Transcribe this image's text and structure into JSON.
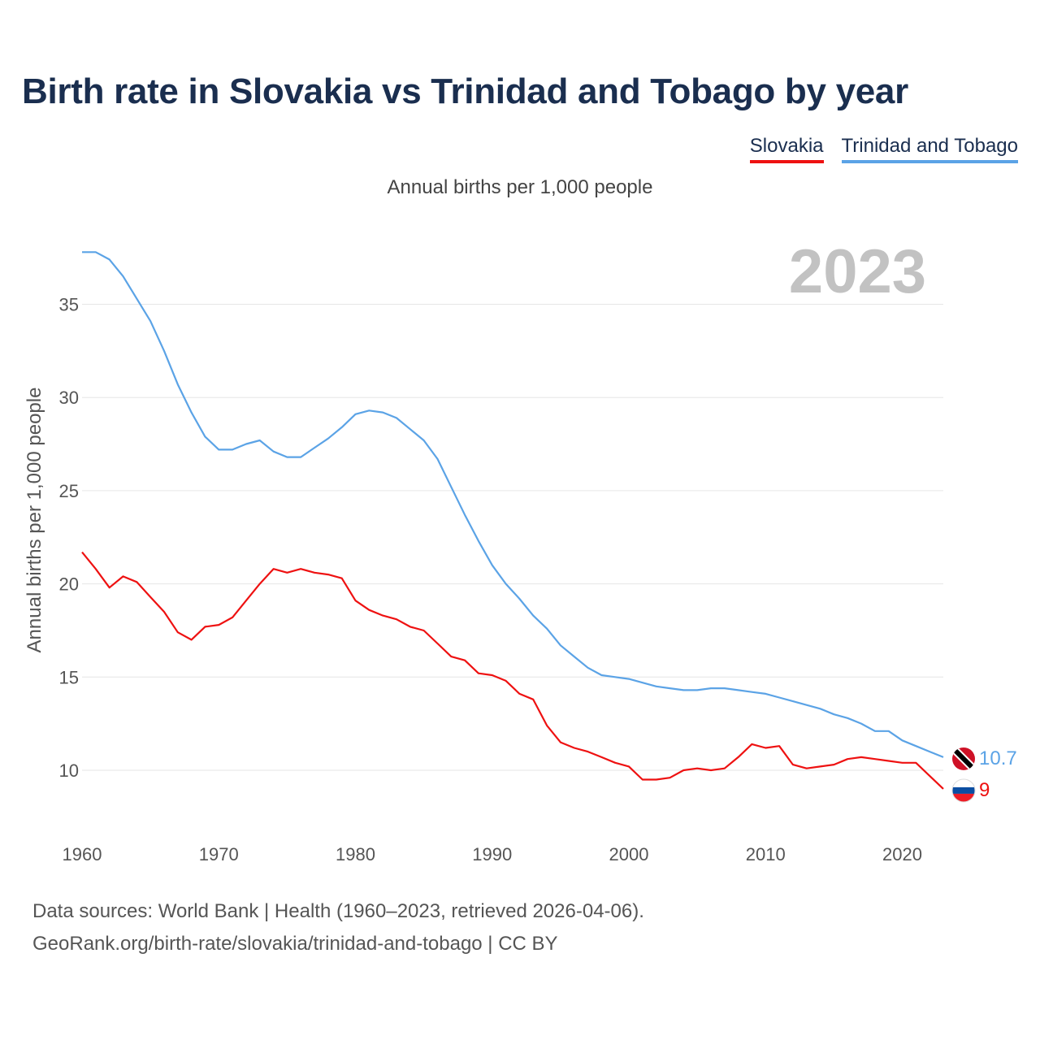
{
  "title": "Birth rate in Slovakia vs Trinidad and Tobago by year",
  "subtitle": "Annual births per 1,000 people",
  "legend": [
    {
      "label": "Slovakia",
      "color": "#ee1111"
    },
    {
      "label": "Trinidad and Tobago",
      "color": "#5ba3e6"
    }
  ],
  "year_overlay": "2023",
  "footer": {
    "line1": "Data sources: World Bank | Health (1960–2023, retrieved 2026-04-06).",
    "line2": "GeoRank.org/birth-rate/slovakia/trinidad-and-tobago | CC BY"
  },
  "chart_data": {
    "type": "line",
    "title": "Birth rate in Slovakia vs Trinidad and Tobago by year",
    "ylabel": "Annual births per 1,000 people",
    "xlabel": "",
    "xlim": [
      1960,
      2023
    ],
    "ylim": [
      7,
      38
    ],
    "yticks": [
      10,
      15,
      20,
      25,
      30,
      35
    ],
    "xticks": [
      1960,
      1970,
      1980,
      1990,
      2000,
      2010,
      2020
    ],
    "grid": true,
    "x": [
      1960,
      1961,
      1962,
      1963,
      1964,
      1965,
      1966,
      1967,
      1968,
      1969,
      1970,
      1971,
      1972,
      1973,
      1974,
      1975,
      1976,
      1977,
      1978,
      1979,
      1980,
      1981,
      1982,
      1983,
      1984,
      1985,
      1986,
      1987,
      1988,
      1989,
      1990,
      1991,
      1992,
      1993,
      1994,
      1995,
      1996,
      1997,
      1998,
      1999,
      2000,
      2001,
      2002,
      2003,
      2004,
      2005,
      2006,
      2007,
      2008,
      2009,
      2010,
      2011,
      2012,
      2013,
      2014,
      2015,
      2016,
      2017,
      2018,
      2019,
      2020,
      2021,
      2022,
      2023
    ],
    "series": [
      {
        "name": "Slovakia",
        "color": "#ee1111",
        "end_label": "9",
        "values": [
          21.7,
          20.8,
          19.8,
          20.4,
          20.1,
          19.3,
          18.5,
          17.4,
          17.0,
          17.7,
          17.8,
          18.2,
          19.1,
          20.0,
          20.8,
          20.6,
          20.8,
          20.6,
          20.5,
          20.3,
          19.1,
          18.6,
          18.3,
          18.1,
          17.7,
          17.5,
          16.8,
          16.1,
          15.9,
          15.2,
          15.1,
          14.8,
          14.1,
          13.8,
          12.4,
          11.5,
          11.2,
          11.0,
          10.7,
          10.4,
          10.2,
          9.5,
          9.5,
          9.6,
          10.0,
          10.1,
          10.0,
          10.1,
          10.7,
          11.4,
          11.2,
          11.3,
          10.3,
          10.1,
          10.2,
          10.3,
          10.6,
          10.7,
          10.6,
          10.5,
          10.4,
          10.4,
          9.7,
          9.0
        ]
      },
      {
        "name": "Trinidad and Tobago",
        "color": "#5ba3e6",
        "end_label": "10.7",
        "values": [
          37.8,
          37.8,
          37.4,
          36.5,
          35.3,
          34.1,
          32.5,
          30.7,
          29.2,
          27.9,
          27.2,
          27.2,
          27.5,
          27.7,
          27.1,
          26.8,
          26.8,
          27.3,
          27.8,
          28.4,
          29.1,
          29.3,
          29.2,
          28.9,
          28.3,
          27.7,
          26.7,
          25.2,
          23.7,
          22.3,
          21.0,
          20.0,
          19.2,
          18.3,
          17.6,
          16.7,
          16.1,
          15.5,
          15.1,
          15.0,
          14.9,
          14.7,
          14.5,
          14.4,
          14.3,
          14.3,
          14.4,
          14.4,
          14.3,
          14.2,
          14.1,
          13.9,
          13.7,
          13.5,
          13.3,
          13.0,
          12.8,
          12.5,
          12.1,
          12.1,
          11.6,
          11.3,
          11.0,
          10.7
        ]
      }
    ]
  }
}
